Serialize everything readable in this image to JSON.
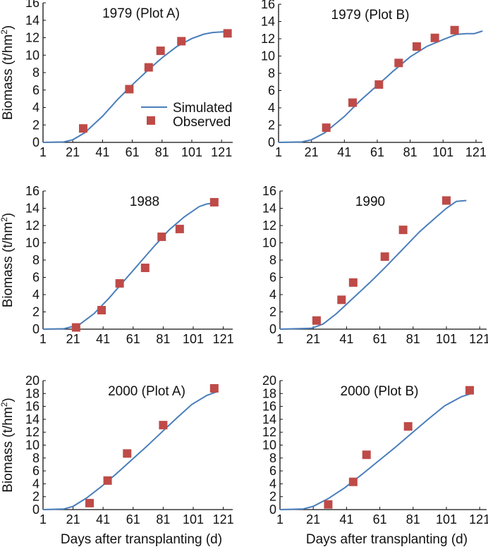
{
  "chart_data": [
    {
      "type": "line",
      "title": "1979 (Plot A)",
      "xlabel": "",
      "ylabel": "Biomass (t/hm²)",
      "xticks": [
        1,
        21,
        41,
        61,
        81,
        101,
        121
      ],
      "yticks": [
        0,
        2,
        4,
        6,
        8,
        10,
        12,
        14,
        16
      ],
      "ylim": [
        0,
        16
      ],
      "xlim": [
        1,
        128
      ],
      "legend": {
        "entries": [
          "Simulated",
          "Observed"
        ],
        "placement": "bottom-right"
      },
      "series": [
        {
          "name": "Simulated",
          "kind": "line",
          "x": [
            1,
            15,
            21,
            29,
            41,
            51,
            61,
            71,
            81,
            91,
            101,
            109,
            115,
            125
          ],
          "y": [
            0,
            0.05,
            0.3,
            1.1,
            3,
            4.9,
            6.6,
            8.2,
            9.7,
            11,
            11.9,
            12.4,
            12.6,
            12.7
          ]
        },
        {
          "name": "Observed",
          "kind": "scatter",
          "x": [
            28,
            59,
            72,
            80,
            94,
            125
          ],
          "y": [
            1.6,
            6.1,
            8.6,
            10.5,
            11.6,
            12.5
          ]
        }
      ]
    },
    {
      "type": "line",
      "title": "1979 (Plot B)",
      "xlabel": "",
      "ylabel": "",
      "xticks": [
        1,
        21,
        41,
        61,
        81,
        101,
        121
      ],
      "yticks": [
        0,
        2,
        4,
        6,
        8,
        10,
        12,
        14,
        16
      ],
      "ylim": [
        0,
        16
      ],
      "xlim": [
        1,
        125
      ],
      "series": [
        {
          "name": "Simulated",
          "kind": "line",
          "x": [
            1,
            15,
            21,
            29,
            41,
            51,
            61,
            71,
            81,
            91,
            101,
            109,
            115,
            120,
            125
          ],
          "y": [
            0,
            0.05,
            0.3,
            1.1,
            3,
            4.9,
            6.6,
            8.3,
            9.9,
            11.1,
            11.9,
            12.5,
            12.6,
            12.6,
            12.9
          ]
        },
        {
          "name": "Observed",
          "kind": "scatter",
          "x": [
            30,
            46,
            62,
            74,
            85,
            96,
            108
          ],
          "y": [
            1.7,
            4.6,
            6.7,
            9.2,
            11.1,
            12.1,
            13.0
          ]
        }
      ]
    },
    {
      "type": "line",
      "title": "1988",
      "xlabel": "",
      "ylabel": "Biomass (t/hm²)",
      "xticks": [
        1,
        21,
        41,
        61,
        81,
        101,
        121
      ],
      "yticks": [
        0,
        2,
        4,
        6,
        8,
        10,
        12,
        14,
        16
      ],
      "ylim": [
        0,
        16
      ],
      "xlim": [
        1,
        125
      ],
      "series": [
        {
          "name": "Simulated",
          "kind": "line",
          "x": [
            1,
            15,
            25,
            35,
            45,
            55,
            65,
            75,
            85,
            95,
            105,
            110,
            116
          ],
          "y": [
            0,
            0.05,
            0.5,
            1.8,
            3.6,
            5.6,
            7.6,
            9.6,
            11.5,
            13,
            14.2,
            14.5,
            14.6
          ]
        },
        {
          "name": "Observed",
          "kind": "scatter",
          "x": [
            23,
            40,
            52,
            69,
            80,
            92,
            115
          ],
          "y": [
            0.2,
            2.2,
            5.3,
            7.1,
            10.7,
            11.6,
            14.7
          ]
        }
      ]
    },
    {
      "type": "line",
      "title": "1990",
      "xlabel": "",
      "ylabel": "",
      "xticks": [
        1,
        21,
        41,
        61,
        81,
        101,
        121
      ],
      "yticks": [
        0,
        2,
        4,
        6,
        8,
        10,
        12,
        14,
        16
      ],
      "ylim": [
        0,
        16
      ],
      "xlim": [
        1,
        125
      ],
      "series": [
        {
          "name": "Simulated",
          "kind": "line",
          "x": [
            1,
            20,
            27,
            35,
            45,
            55,
            65,
            75,
            85,
            95,
            101,
            107,
            113
          ],
          "y": [
            0,
            0.1,
            0.6,
            1.8,
            3.6,
            5.4,
            7.3,
            9.3,
            11.3,
            13,
            14,
            14.8,
            14.9
          ]
        },
        {
          "name": "Observed",
          "kind": "scatter",
          "x": [
            23,
            38,
            45,
            64,
            75,
            101
          ],
          "y": [
            1,
            3.4,
            5.4,
            8.4,
            11.5,
            14.9
          ]
        }
      ]
    },
    {
      "type": "line",
      "title": "2000 (Plot A)",
      "xlabel": "Days after transplanting (d)",
      "ylabel": "Biomass (t/hm²)",
      "xticks": [
        1,
        21,
        41,
        61,
        81,
        101,
        121
      ],
      "yticks": [
        0,
        2,
        4,
        6,
        8,
        10,
        12,
        14,
        16,
        18,
        20
      ],
      "ylim": [
        0,
        20
      ],
      "xlim": [
        1,
        125
      ],
      "series": [
        {
          "name": "Simulated",
          "kind": "line",
          "x": [
            1,
            15,
            21,
            30,
            40,
            50,
            60,
            70,
            80,
            90,
            100,
            110,
            117
          ],
          "y": [
            0,
            0.1,
            0.5,
            1.8,
            3.6,
            5.6,
            7.7,
            9.8,
            12,
            14.2,
            16.3,
            17.7,
            18.3
          ]
        },
        {
          "name": "Observed",
          "kind": "scatter",
          "x": [
            32,
            44,
            57,
            81,
            115
          ],
          "y": [
            1,
            4.5,
            8.7,
            13.1,
            18.8
          ]
        }
      ]
    },
    {
      "type": "line",
      "title": "2000 (Plot B)",
      "xlabel": "Days after transplanting (d)",
      "ylabel": "",
      "xticks": [
        1,
        21,
        41,
        61,
        81,
        101,
        121
      ],
      "yticks": [
        0,
        2,
        4,
        6,
        8,
        10,
        12,
        14,
        16,
        18,
        20
      ],
      "ylim": [
        0,
        20
      ],
      "xlim": [
        1,
        125
      ],
      "series": [
        {
          "name": "Simulated",
          "kind": "line",
          "x": [
            1,
            15,
            21,
            30,
            40,
            50,
            60,
            70,
            80,
            90,
            100,
            110,
            117
          ],
          "y": [
            0,
            0.1,
            0.5,
            1.7,
            3.4,
            5.4,
            7.5,
            9.6,
            11.8,
            14,
            16.1,
            17.5,
            18.1
          ]
        },
        {
          "name": "Observed",
          "kind": "scatter",
          "x": [
            30,
            45,
            53,
            78,
            115
          ],
          "y": [
            0.8,
            4.3,
            8.5,
            12.9,
            18.5
          ]
        }
      ]
    }
  ],
  "colors": {
    "simulated": "#4a7ebb",
    "observed": "#be4b48"
  }
}
